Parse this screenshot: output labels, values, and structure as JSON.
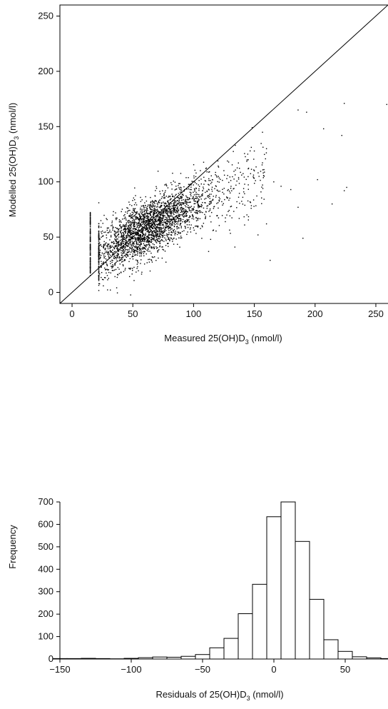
{
  "chart_data": [
    {
      "type": "scatter",
      "title": "",
      "xlabel": "Measured 25(OH)D",
      "xlabel_sub": "3",
      "xlabel_tail": " (nmol/l)",
      "ylabel": "Modelled 25(OH)D",
      "ylabel_sub": "3",
      "ylabel_tail": " (nmol/l)",
      "xlim": [
        -10,
        260
      ],
      "ylim": [
        -10,
        260
      ],
      "xticks": [
        0,
        50,
        100,
        150,
        200,
        250
      ],
      "yticks": [
        0,
        50,
        100,
        150,
        200,
        250
      ],
      "reference_line": "identity (y = x)",
      "outlier_points": [
        [
          186,
          165
        ],
        [
          193,
          163
        ],
        [
          224,
          171
        ],
        [
          259,
          170
        ],
        [
          207,
          148
        ],
        [
          222,
          142
        ],
        [
          226,
          95
        ],
        [
          224,
          92
        ],
        [
          214,
          80
        ],
        [
          202,
          102
        ],
        [
          190,
          49
        ],
        [
          186,
          77
        ],
        [
          163,
          29
        ],
        [
          160,
          130
        ],
        [
          145,
          120
        ],
        [
          157,
          94
        ],
        [
          172,
          96
        ],
        [
          180,
          93
        ],
        [
          150,
          110
        ],
        [
          134,
          41
        ],
        [
          142,
          61
        ],
        [
          153,
          52
        ],
        [
          160,
          62
        ],
        [
          166,
          100
        ]
      ]
    },
    {
      "type": "bar",
      "title": "",
      "xlabel": "Residuals of 25(OH)D",
      "xlabel_sub": "3",
      "xlabel_tail": " (nmol/l)",
      "ylabel": "Frequency",
      "xlim": [
        -150,
        80
      ],
      "ylim": [
        0,
        700
      ],
      "xticks": [
        -150,
        -100,
        -50,
        0,
        50
      ],
      "xtick_labels": [
        "−150",
        "−100",
        "−50",
        "0",
        "50"
      ],
      "yticks": [
        0,
        100,
        200,
        300,
        400,
        500,
        600,
        700
      ],
      "bin_width": 10,
      "bin_starts": [
        -155,
        -145,
        -135,
        -125,
        -115,
        -105,
        -95,
        -85,
        -75,
        -65,
        -55,
        -45,
        -35,
        -25,
        -15,
        -5,
        5,
        15,
        25,
        35,
        45,
        55,
        65,
        75
      ],
      "values": [
        2,
        2,
        3,
        2,
        1,
        3,
        6,
        9,
        8,
        12,
        20,
        50,
        92,
        202,
        333,
        634,
        700,
        524,
        266,
        86,
        34,
        10,
        5,
        2
      ]
    }
  ]
}
